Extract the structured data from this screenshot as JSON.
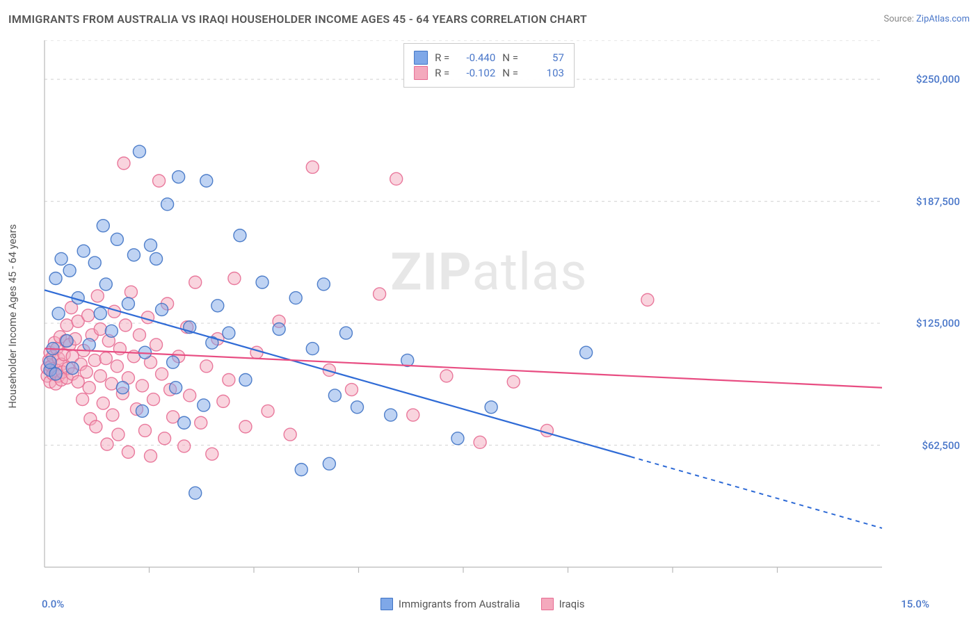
{
  "title": "IMMIGRANTS FROM AUSTRALIA VS IRAQI HOUSEHOLDER INCOME AGES 45 - 64 YEARS CORRELATION CHART",
  "source_prefix": "Source: ",
  "source_link": "ZipAtlas.com",
  "y_axis_label": "Householder Income Ages 45 - 64 years",
  "watermark_a": "ZIP",
  "watermark_b": "atlas",
  "chart": {
    "type": "scatter",
    "xlim": [
      0,
      15
    ],
    "ylim": [
      0,
      270000
    ],
    "x_ticks_minor": [
      1.875,
      3.75,
      5.625,
      7.5,
      9.375,
      11.25,
      13.125
    ],
    "x_tick_labels": [
      {
        "v": 0,
        "label": "0.0%"
      },
      {
        "v": 15,
        "label": "15.0%"
      }
    ],
    "y_grid": [
      62500,
      125000,
      187500,
      250000,
      270000
    ],
    "y_tick_labels": [
      {
        "v": 62500,
        "label": "$62,500"
      },
      {
        "v": 125000,
        "label": "$125,000"
      },
      {
        "v": 187500,
        "label": "$187,500"
      },
      {
        "v": 250000,
        "label": "$250,000"
      }
    ],
    "background_color": "#ffffff",
    "grid_color": "#d9d9d9",
    "grid_dash": "4,5",
    "axis_color": "#b9b9b9",
    "marker_radius": 9,
    "marker_opacity": 0.5,
    "series": [
      {
        "id": "australia",
        "label": "Immigrants from Australia",
        "color_fill": "#7fa8e8",
        "color_stroke": "#3e72c4",
        "line_color": "#2f6bd6",
        "stats": {
          "R": "-0.440",
          "N": "57"
        },
        "trend": {
          "x1": 0,
          "y1": 142000,
          "x2": 15,
          "y2": 20000,
          "solid_until_x": 10.5
        },
        "points": [
          [
            0.1,
            101000
          ],
          [
            0.1,
            105000
          ],
          [
            0.15,
            112000
          ],
          [
            0.2,
            99000
          ],
          [
            0.2,
            148000
          ],
          [
            0.25,
            130000
          ],
          [
            0.3,
            158000
          ],
          [
            0.4,
            116000
          ],
          [
            0.45,
            152000
          ],
          [
            0.5,
            102000
          ],
          [
            0.6,
            138000
          ],
          [
            0.7,
            162000
          ],
          [
            0.8,
            114000
          ],
          [
            0.9,
            156000
          ],
          [
            1.0,
            130000
          ],
          [
            1.05,
            175000
          ],
          [
            1.1,
            145000
          ],
          [
            1.2,
            121000
          ],
          [
            1.3,
            168000
          ],
          [
            1.4,
            92000
          ],
          [
            1.5,
            135000
          ],
          [
            1.6,
            160000
          ],
          [
            1.7,
            213000
          ],
          [
            1.75,
            80000
          ],
          [
            1.8,
            110000
          ],
          [
            1.9,
            165000
          ],
          [
            2.0,
            158000
          ],
          [
            2.1,
            132000
          ],
          [
            2.2,
            186000
          ],
          [
            2.3,
            105000
          ],
          [
            2.35,
            92000
          ],
          [
            2.4,
            200000
          ],
          [
            2.5,
            74000
          ],
          [
            2.6,
            123000
          ],
          [
            2.7,
            38000
          ],
          [
            2.85,
            83000
          ],
          [
            2.9,
            198000
          ],
          [
            3.0,
            115000
          ],
          [
            3.1,
            134000
          ],
          [
            3.3,
            120000
          ],
          [
            3.5,
            170000
          ],
          [
            3.6,
            96000
          ],
          [
            3.9,
            146000
          ],
          [
            4.2,
            122000
          ],
          [
            4.5,
            138000
          ],
          [
            4.6,
            50000
          ],
          [
            4.8,
            112000
          ],
          [
            5.0,
            145000
          ],
          [
            5.1,
            53000
          ],
          [
            5.2,
            88000
          ],
          [
            5.4,
            120000
          ],
          [
            5.6,
            82000
          ],
          [
            6.2,
            78000
          ],
          [
            6.5,
            106000
          ],
          [
            7.4,
            66000
          ],
          [
            8.0,
            82000
          ],
          [
            9.7,
            110000
          ]
        ]
      },
      {
        "id": "iraqis",
        "label": "Iraqis",
        "color_fill": "#f4a9bd",
        "color_stroke": "#e76b92",
        "line_color": "#e84d82",
        "stats": {
          "R": "-0.102",
          "N": "103"
        },
        "trend": {
          "x1": 0,
          "y1": 112000,
          "x2": 15,
          "y2": 92000,
          "solid_until_x": 15
        },
        "points": [
          [
            0.05,
            98000
          ],
          [
            0.05,
            102000
          ],
          [
            0.08,
            106000
          ],
          [
            0.1,
            95000
          ],
          [
            0.1,
            110000
          ],
          [
            0.12,
            103000
          ],
          [
            0.15,
            99000
          ],
          [
            0.15,
            108000
          ],
          [
            0.18,
            115000
          ],
          [
            0.2,
            94000
          ],
          [
            0.2,
            101000
          ],
          [
            0.22,
            112000
          ],
          [
            0.25,
            98000
          ],
          [
            0.25,
            107000
          ],
          [
            0.28,
            118000
          ],
          [
            0.3,
            96000
          ],
          [
            0.3,
            104000
          ],
          [
            0.32,
            100000
          ],
          [
            0.35,
            109000
          ],
          [
            0.38,
            116000
          ],
          [
            0.4,
            97000
          ],
          [
            0.4,
            124000
          ],
          [
            0.42,
            102000
          ],
          [
            0.45,
            114000
          ],
          [
            0.48,
            133000
          ],
          [
            0.5,
            99000
          ],
          [
            0.5,
            108000
          ],
          [
            0.55,
            117000
          ],
          [
            0.6,
            95000
          ],
          [
            0.6,
            126000
          ],
          [
            0.65,
            104000
          ],
          [
            0.68,
            86000
          ],
          [
            0.7,
            111000
          ],
          [
            0.75,
            100000
          ],
          [
            0.78,
            129000
          ],
          [
            0.8,
            92000
          ],
          [
            0.82,
            76000
          ],
          [
            0.85,
            119000
          ],
          [
            0.9,
            106000
          ],
          [
            0.92,
            72000
          ],
          [
            0.95,
            139000
          ],
          [
            1.0,
            98000
          ],
          [
            1.0,
            122000
          ],
          [
            1.05,
            84000
          ],
          [
            1.1,
            107000
          ],
          [
            1.12,
            63000
          ],
          [
            1.15,
            116000
          ],
          [
            1.2,
            94000
          ],
          [
            1.22,
            78000
          ],
          [
            1.25,
            131000
          ],
          [
            1.3,
            103000
          ],
          [
            1.32,
            68000
          ],
          [
            1.35,
            112000
          ],
          [
            1.4,
            89000
          ],
          [
            1.42,
            207000
          ],
          [
            1.45,
            124000
          ],
          [
            1.5,
            97000
          ],
          [
            1.5,
            59000
          ],
          [
            1.55,
            141000
          ],
          [
            1.6,
            108000
          ],
          [
            1.65,
            81000
          ],
          [
            1.7,
            119000
          ],
          [
            1.75,
            93000
          ],
          [
            1.8,
            70000
          ],
          [
            1.85,
            128000
          ],
          [
            1.9,
            105000
          ],
          [
            1.9,
            57000
          ],
          [
            1.95,
            86000
          ],
          [
            2.0,
            114000
          ],
          [
            2.05,
            198000
          ],
          [
            2.1,
            99000
          ],
          [
            2.15,
            66000
          ],
          [
            2.2,
            135000
          ],
          [
            2.25,
            91000
          ],
          [
            2.3,
            77000
          ],
          [
            2.4,
            108000
          ],
          [
            2.5,
            62000
          ],
          [
            2.55,
            123000
          ],
          [
            2.6,
            88000
          ],
          [
            2.7,
            146000
          ],
          [
            2.8,
            74000
          ],
          [
            2.9,
            103000
          ],
          [
            3.0,
            58000
          ],
          [
            3.1,
            117000
          ],
          [
            3.2,
            85000
          ],
          [
            3.3,
            96000
          ],
          [
            3.4,
            148000
          ],
          [
            3.6,
            72000
          ],
          [
            3.8,
            110000
          ],
          [
            4.0,
            80000
          ],
          [
            4.2,
            126000
          ],
          [
            4.4,
            68000
          ],
          [
            4.8,
            205000
          ],
          [
            5.1,
            101000
          ],
          [
            5.5,
            91000
          ],
          [
            6.0,
            140000
          ],
          [
            6.3,
            199000
          ],
          [
            6.6,
            78000
          ],
          [
            7.2,
            98000
          ],
          [
            7.8,
            64000
          ],
          [
            8.4,
            95000
          ],
          [
            9.0,
            70000
          ],
          [
            10.8,
            137000
          ]
        ]
      }
    ]
  },
  "stats_labels": {
    "R": "R =",
    "N": "N ="
  }
}
